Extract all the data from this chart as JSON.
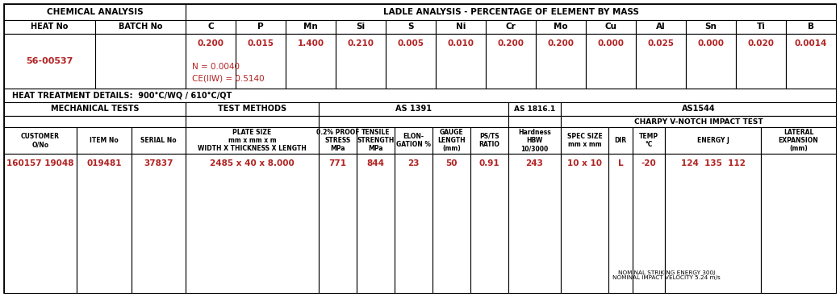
{
  "bg_color": "#ffffff",
  "text_color": "#000000",
  "red_color": "#b22222",
  "chem_header": "CHEMICAL ANALYSIS",
  "ladle_header": "LADLE ANALYSIS - PERCENTAGE OF ELEMENT BY MASS",
  "heat_no_label": "HEAT No",
  "batch_no_label": "BATCH No",
  "elements": [
    "C",
    "P",
    "Mn",
    "Si",
    "S",
    "Ni",
    "Cr",
    "Mo",
    "Cu",
    "Al",
    "Sn",
    "Ti",
    "B"
  ],
  "heat_no_value": "56-00537",
  "element_values": [
    "0.200",
    "0.015",
    "1.400",
    "0.210",
    "0.005",
    "0.010",
    "0.200",
    "0.200",
    "0.000",
    "0.025",
    "0.000",
    "0.020",
    "0.0014"
  ],
  "n_value": "N = 0.0040",
  "ce_value": "CE(IIW) = 0.5140",
  "heat_treatment": "HEAT TREATMENT DETAILS:  900°C/WQ / 610°C/QT",
  "mech_tests_label": "MECHANICAL TESTS",
  "test_methods_label": "TEST METHODS",
  "as1391_label": "AS 1391",
  "as1816_label": "AS 1816.1",
  "as1544_label": "AS1544",
  "charpy_label": "CHARPY V-NOTCH IMPACT TEST",
  "col_headers_mech": [
    "CUSTOMER\nO/No",
    "ITEM No",
    "SERIAL No"
  ],
  "col_header_plate": "PLATE SIZE\nmm x mm x m\nWIDTH X THICKNESS X LENGTH",
  "col_headers_stress": [
    "0.2% PROOF\nSTRESS\nMPa",
    "TENSILE\nSTRENGTH\nMPa",
    "ELON-\nGATION %",
    "GAUGE\nLENGTH\n(mm)",
    "PS/TS\nRATIO"
  ],
  "col_header_hardness": "Hardness\nHBW\n10/3000",
  "col_headers_charpy": [
    "SPEC SIZE\nmm x mm",
    "DIR",
    "TEMP\n°C",
    "ENERGY J",
    "LATERAL\nEXPANSION\n(mm)"
  ],
  "data_row_mech": [
    "160157 19048",
    "019481",
    "37837"
  ],
  "data_row_plate": "2485 x 40 x 8.000",
  "data_row_stress": [
    "771",
    "844",
    "23",
    "50",
    "0.91"
  ],
  "data_row_hardness": "243",
  "data_row_charpy": [
    "10 x 10",
    "L",
    "-20",
    "124  135  112",
    ""
  ],
  "nominal_note": "NOMINAL STRIKING ENERGY 300J\nNOMINAL IMPACT VELOCITY 5.24 m/s"
}
